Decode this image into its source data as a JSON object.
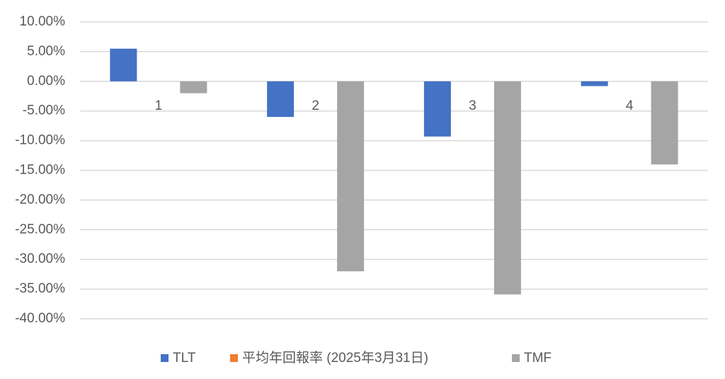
{
  "chart_data": {
    "type": "bar",
    "categories": [
      "1",
      "2",
      "3",
      "4"
    ],
    "series": [
      {
        "name": "TLT",
        "color": "#4472c4",
        "values": [
          5.5,
          -6.0,
          -9.3,
          -0.8
        ]
      },
      {
        "name": "平均年回報率 (2025年3月31日)",
        "color": "#ed7d31",
        "values": [
          null,
          null,
          null,
          null
        ]
      },
      {
        "name": "TMF",
        "color": "#a5a5a5",
        "values": [
          -2.0,
          -32.0,
          -35.9,
          -14.0
        ]
      }
    ],
    "ylim": [
      -40,
      10
    ],
    "yticks": [
      {
        "value": 10,
        "label": "10.00%"
      },
      {
        "value": 5,
        "label": "5.00%"
      },
      {
        "value": 0,
        "label": "0.00%"
      },
      {
        "value": -5,
        "label": "-5.00%"
      },
      {
        "value": -10,
        "label": "-10.00%"
      },
      {
        "value": -15,
        "label": "-15.00%"
      },
      {
        "value": -20,
        "label": "-20.00%"
      },
      {
        "value": -25,
        "label": "-25.00%"
      },
      {
        "value": -30,
        "label": "-30.00%"
      },
      {
        "value": -35,
        "label": "-35.00%"
      },
      {
        "value": -40,
        "label": "-40.00%"
      }
    ],
    "grid": true
  }
}
